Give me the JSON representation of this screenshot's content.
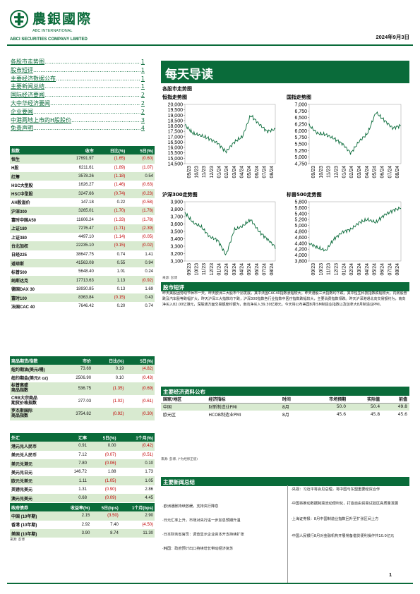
{
  "header": {
    "brand_cn": "農銀國際",
    "brand_en1": "ABC INTERNATIONAL",
    "brand_en2": "ABCI SECURITIES COMPANY LIMITED",
    "date": "2024年9月3日",
    "brand_color": "#0a6b3a"
  },
  "toc": [
    {
      "label": "各股市走势图",
      "page": "1"
    },
    {
      "label": "股市短评",
      "page": "1"
    },
    {
      "label": "主要经济数据公布",
      "page": "1"
    },
    {
      "label": "主要新闻总结",
      "page": "1"
    },
    {
      "label": "国际经济要闻",
      "page": "2"
    },
    {
      "label": "大中华经济要闻",
      "page": "2"
    },
    {
      "label": "企业要闻",
      "page": "2"
    },
    {
      "label": "中港两地上市的H股股价",
      "page": "3"
    },
    {
      "label": "免责声明",
      "page": "4"
    }
  ],
  "indices": {
    "headers": [
      "指数",
      "收市",
      "日比(%)",
      "5日(%)"
    ],
    "rows": [
      [
        "恒生",
        "17691.97",
        "(1.65)",
        "(0.60)"
      ],
      [
        "H股",
        "6211.61",
        "(1.89)",
        "(1.07)"
      ],
      [
        "红筹",
        "3578.26",
        "(1.18)",
        "0.54"
      ],
      [
        "HSC大型股",
        "1626.27",
        "(1.46)",
        "(0.63)"
      ],
      [
        "HSC中型股",
        "3247.66",
        "(0.74)",
        "(0.23)"
      ],
      [
        "AH股溢价",
        "147.18",
        "0.22",
        "(0.58)"
      ],
      [
        "沪深300",
        "3265.01",
        "(1.70)",
        "(1.78)"
      ],
      [
        "富时中国A50",
        "11606.24",
        "(1.33)",
        "(1.78)"
      ],
      [
        "上证180",
        "7276.47",
        "(1.71)",
        "(2.39)"
      ],
      [
        "上证380",
        "4497.10",
        "(1.14)",
        "(0.05)"
      ],
      [
        "台北加权",
        "22235.10",
        "(0.15)",
        "(0.02)"
      ],
      [
        "日经225",
        "38647.75",
        "0.74",
        "1.41"
      ],
      [
        "道琼斯",
        "41563.08",
        "0.55",
        "0.94"
      ],
      [
        "标普500",
        "5648.40",
        "1.01",
        "0.24"
      ],
      [
        "纳斯达克",
        "17713.63",
        "1.13",
        "(0.92)"
      ],
      [
        "德国DAX 30",
        "18930.85",
        "0.13",
        "1.69"
      ],
      [
        "富时100",
        "8363.84",
        "(0.15)",
        "0.43"
      ],
      [
        "法国CAC 40",
        "7646.42",
        "0.20",
        "0.74"
      ]
    ]
  },
  "commodities": {
    "headers": [
      "商品期货/指数",
      "市价",
      "日比(%)",
      "5日(%)"
    ],
    "rows": [
      [
        "纽约期油(美元/桶)",
        "73.69",
        "0.19",
        "(4.82)"
      ],
      [
        "纽约期金(美元/t oz)",
        "2506.90",
        "0.10",
        "(0.43)"
      ],
      [
        "标普高盛\n商品指数",
        "536.75",
        "(1.35)",
        "(0.69)"
      ],
      [
        "CRB大宗商品\n期货价格指数",
        "277.03",
        "(1.02)",
        "(0.61)"
      ],
      [
        "罗杰斯国际\n商品指数",
        "3754.82",
        "(0.92)",
        "(0.30)"
      ]
    ]
  },
  "fx": {
    "headers": [
      "外汇",
      "汇率",
      "5日(%)",
      "1个月(%)"
    ],
    "rows": [
      [
        "港元兑人民币",
        "0.91",
        "0.00",
        "(0.42)"
      ],
      [
        "美元兑人民币",
        "7.12",
        "(0.07)",
        "(0.51)"
      ],
      [
        "美元兑港元",
        "7.80",
        "(0.06)",
        "0.10"
      ],
      [
        "美元兑日元",
        "146.72",
        "1.88",
        "1.73"
      ],
      [
        "欧元兑美元",
        "1.11",
        "(1.05)",
        "1.05"
      ],
      [
        "英镑兑美元",
        "1.31",
        "(0.90)",
        "2.86"
      ],
      [
        "澳元兑美元",
        "0.68",
        "(0.09)",
        "4.45"
      ]
    ]
  },
  "bonds": {
    "headers": [
      "政府债券",
      "收益率(%)",
      "5日(bps)",
      "1个月(bps)"
    ],
    "rows": [
      [
        "中国 (10年期)",
        "2.15",
        "(3.50)",
        "2.90"
      ],
      [
        "香港 (10年期)",
        "2.92",
        "7.40",
        "(4.50)"
      ],
      [
        "美国 (10年期)",
        "3.90",
        "8.74",
        "11.30"
      ]
    ],
    "source": "来源: 彭博"
  },
  "banner": "每天导读",
  "charts_section": "各股市走势图",
  "chart_data": [
    {
      "type": "line",
      "title": "恒指走势图",
      "x": [
        "09/23",
        "10/23",
        "11/23",
        "12/23",
        "01/24",
        "02/24",
        "03/24",
        "04/24",
        "05/24",
        "06/24",
        "07/24",
        "08/24"
      ],
      "ylim": [
        14500,
        20000
      ],
      "yticks": [
        "20,000",
        "19,500",
        "19,000",
        "18,500",
        "18,000",
        "17,500",
        "17,000",
        "16,500",
        "16,000",
        "15,500",
        "15,000",
        "14,500"
      ],
      "series": [
        {
          "values": [
            18100,
            17300,
            17100,
            16800,
            16400,
            15600,
            16500,
            17000,
            19000,
            18200,
            17500,
            17700
          ]
        }
      ]
    },
    {
      "type": "line",
      "title": "国指走势图",
      "x": [
        "09/23",
        "10/23",
        "11/23",
        "12/23",
        "01/24",
        "02/24",
        "03/24",
        "04/24",
        "05/24",
        "06/24",
        "07/24",
        "08/24"
      ],
      "ylim": [
        4750,
        7000
      ],
      "yticks": [
        "7,000",
        "6,750",
        "6,500",
        "6,250",
        "6,000",
        "5,750",
        "5,500",
        "5,250",
        "5,000",
        "4,750"
      ],
      "series": [
        {
          "values": [
            6200,
            5900,
            5850,
            5700,
            5500,
            5150,
            5600,
            5900,
            6700,
            6400,
            6100,
            6200
          ]
        }
      ]
    },
    {
      "type": "line",
      "title": "沪深300走势图",
      "x": [
        "09/23",
        "10/23",
        "11/23",
        "12/23",
        "01/24",
        "02/24",
        "03/24",
        "04/24",
        "05/24",
        "06/24",
        "07/24",
        "08/24"
      ],
      "ylim": [
        3100,
        3900
      ],
      "yticks": [
        "3,900",
        "3,800",
        "3,700",
        "3,600",
        "3,500",
        "3,400",
        "3,300",
        "3,200",
        "3,100"
      ],
      "series": [
        {
          "values": [
            3750,
            3620,
            3560,
            3430,
            3380,
            3180,
            3520,
            3570,
            3660,
            3500,
            3400,
            3290
          ]
        }
      ]
    },
    {
      "type": "line",
      "title": "标普500走势图",
      "x": [
        "09/23",
        "10/23",
        "11/23",
        "12/23",
        "01/24",
        "02/24",
        "03/24",
        "04/24",
        "05/24",
        "06/24",
        "07/24",
        "08/24"
      ],
      "ylim": [
        3800,
        5800
      ],
      "yticks": [
        "5,800",
        "5,600",
        "5,400",
        "5,200",
        "5,000",
        "4,800",
        "4,600",
        "4,400",
        "4,200",
        "4,000",
        "3,800"
      ],
      "series": [
        {
          "values": [
            4400,
            4250,
            4150,
            4550,
            4780,
            4870,
            5100,
            5200,
            5100,
            5350,
            5500,
            5600
          ]
        }
      ]
    }
  ],
  "chart_source": "来源: 彭博",
  "commentary": {
    "title": "股市短评",
    "text": "昨天美股因劳动节休市一天。昨天欧洲三大股市个别发展，其中法国CAC40指数涨幅较大。昨天港股三大指数均下跌，其中恒生科技指数跌幅较大。内房股普跌及汽车股等跌幅扩大，昨天沪深三大指数均下跌，沪深300指数各行业指数中医疗指数跌幅较大，主要消费指数领跌。昨天沪深港通北向交易额约为，南向净买入82.00亿港元，深股通方面交易额度约额为，南向净买入39.30亿港元。今天将公布美国8月ISM制造业指数以及加拿大8月制造业PMI。"
  },
  "econ": {
    "title": "主要经济资料公布",
    "headers": [
      "国家/地区",
      "经济指标",
      "时间",
      "市场预期",
      "实际值",
      "前值"
    ],
    "rows": [
      [
        "中国",
        "财新制造业PMI",
        "8月",
        "50.0",
        "50.4",
        "49.8"
      ],
      [
        "欧元区",
        "HCOB制造业PMI",
        "8月",
        "45.6",
        "45.8",
        "45.6"
      ]
    ],
    "source": "来源: 彭博, (*为经修正值)"
  },
  "news": {
    "title": "主要新闻总结",
    "left": [
      "·欧洲通胀持续放缓，支持央行降息",
      "·日元汇率上升，市场对央行进一步加息预期升温",
      "·日本财务省官员：调查显示企业资本开支持续扩张",
      "·韩国：政府预计出口持续增长带动经济复苏"
    ],
    "right": [
      "·央视：习近平将会见总理，将中国与东盟重要经贸合作",
      "·中国将推动数据跨境流动便利化，打造自由贸易试验区高质量发展",
      "·上海证券报：8月中国制造业指数回升至扩张区间上方",
      "·中国人民银行8月对金融机构开展常备借贷便利操作共10.0亿元"
    ]
  },
  "page_number": "1"
}
